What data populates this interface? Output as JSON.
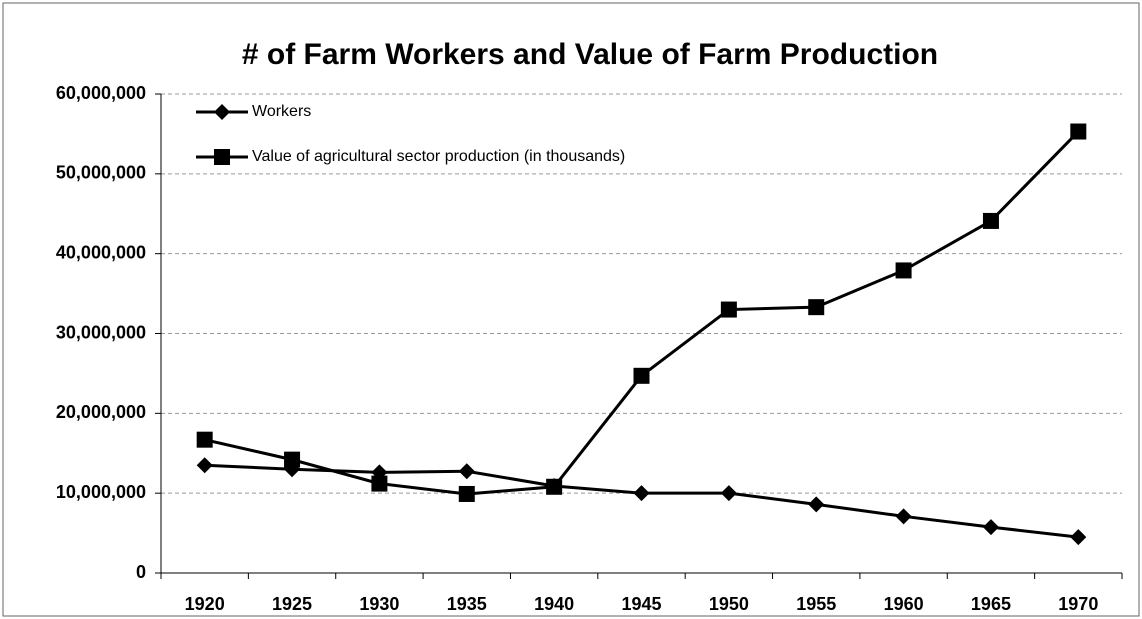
{
  "chart_data": {
    "type": "line",
    "title": "# of Farm Workers and Value of Farm Production",
    "categories": [
      "1920",
      "1925",
      "1930",
      "1935",
      "1940",
      "1945",
      "1950",
      "1955",
      "1960",
      "1965",
      "1970"
    ],
    "series": [
      {
        "name": "Workers",
        "color": "#000000",
        "marker": "diamond",
        "values": [
          13500000,
          13000000,
          12600000,
          12750000,
          10900000,
          10000000,
          10000000,
          8600000,
          7100000,
          5750000,
          4500000
        ]
      },
      {
        "name": "Value of agricultural sector production (in thousands)",
        "color": "#000000",
        "marker": "square",
        "values": [
          16700000,
          14200000,
          11200000,
          9900000,
          10800000,
          24700000,
          33000000,
          33300000,
          37900000,
          44100000,
          55300000
        ]
      }
    ],
    "ylim": [
      0,
      60000000
    ],
    "yticks": [
      0,
      {
        "value": 10000000,
        "label": "10,000,000"
      },
      {
        "value": 20000000,
        "label": "20,000,000"
      },
      {
        "value": 30000000,
        "label": "30,000,000"
      },
      {
        "value": 40000000,
        "label": "40,000,000"
      },
      {
        "value": 50000000,
        "label": "50,000,000"
      },
      {
        "value": 60000000,
        "label": "60,000,000"
      }
    ],
    "grid": true,
    "legend": "upper-left"
  }
}
